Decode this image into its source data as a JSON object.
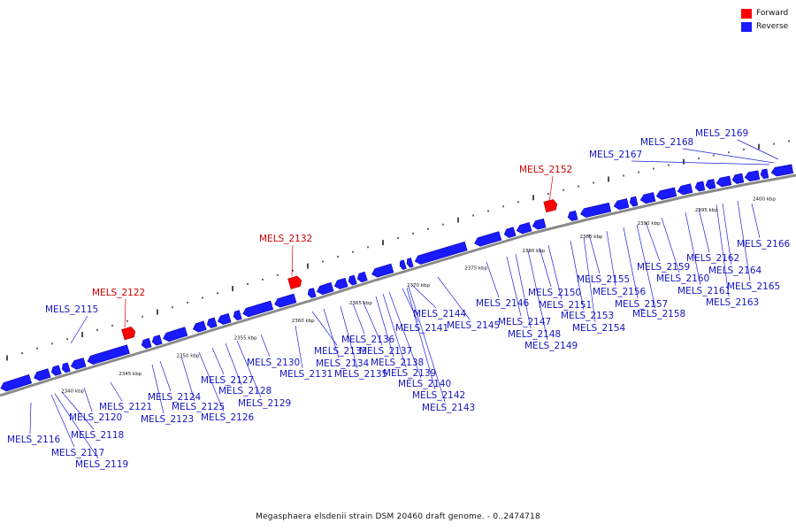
{
  "legend": {
    "forward_label": "Forward",
    "reverse_label": "Reverse",
    "forward_color": "#ff0000",
    "reverse_color": "#1a1aff"
  },
  "caption": "Megasphaera elsdenii strain DSM 20460 draft genome. - 0..2474718",
  "colors": {
    "leader_forward": "#e00000",
    "leader_reverse": "#2020dd",
    "label_forward": "#d00000",
    "label_reverse": "#1515c0",
    "backbone": "#8a8a8a",
    "ticks": "#000000"
  },
  "scale": {
    "unit": "kbp",
    "start_kbp": 2336,
    "end_kbp": 2402,
    "labels": [
      {
        "kbp": 2340,
        "text": "2340 kbp"
      },
      {
        "kbp": 2345,
        "text": "2345 kbp"
      },
      {
        "kbp": 2350,
        "text": "2350 kbp"
      },
      {
        "kbp": 2355,
        "text": "2355 kbp"
      },
      {
        "kbp": 2360,
        "text": "2360 kbp"
      },
      {
        "kbp": 2365,
        "text": "2365 kbp"
      },
      {
        "kbp": 2370,
        "text": "2370 kbp"
      },
      {
        "kbp": 2375,
        "text": "2375 kbp"
      },
      {
        "kbp": 2380,
        "text": "2380 kbp"
      },
      {
        "kbp": 2385,
        "text": "2385 kbp"
      },
      {
        "kbp": 2390,
        "text": "2390 kbp"
      },
      {
        "kbp": 2395,
        "text": "2395 kbp"
      },
      {
        "kbp": 2400,
        "text": "2400 kbp"
      }
    ]
  },
  "genes": [
    {
      "name": "MELS_2115",
      "strand": "reverse"
    },
    {
      "name": "MELS_2116",
      "strand": "reverse"
    },
    {
      "name": "MELS_2117",
      "strand": "reverse"
    },
    {
      "name": "MELS_2118",
      "strand": "reverse"
    },
    {
      "name": "MELS_2119",
      "strand": "reverse"
    },
    {
      "name": "MELS_2120",
      "strand": "reverse"
    },
    {
      "name": "MELS_2121",
      "strand": "reverse"
    },
    {
      "name": "MELS_2122",
      "strand": "forward"
    },
    {
      "name": "MELS_2123",
      "strand": "reverse"
    },
    {
      "name": "MELS_2124",
      "strand": "reverse"
    },
    {
      "name": "MELS_2125",
      "strand": "reverse"
    },
    {
      "name": "MELS_2126",
      "strand": "reverse"
    },
    {
      "name": "MELS_2127",
      "strand": "reverse"
    },
    {
      "name": "MELS_2128",
      "strand": "reverse"
    },
    {
      "name": "MELS_2129",
      "strand": "reverse"
    },
    {
      "name": "MELS_2130",
      "strand": "reverse"
    },
    {
      "name": "MELS_2131",
      "strand": "reverse"
    },
    {
      "name": "MELS_2132",
      "strand": "forward"
    },
    {
      "name": "MELS_2133",
      "strand": "reverse"
    },
    {
      "name": "MELS_2134",
      "strand": "reverse"
    },
    {
      "name": "MELS_2135",
      "strand": "reverse"
    },
    {
      "name": "MELS_2136",
      "strand": "reverse"
    },
    {
      "name": "MELS_2137",
      "strand": "reverse"
    },
    {
      "name": "MELS_2138",
      "strand": "reverse"
    },
    {
      "name": "MELS_2139",
      "strand": "reverse"
    },
    {
      "name": "MELS_2140",
      "strand": "reverse"
    },
    {
      "name": "MELS_2141",
      "strand": "reverse"
    },
    {
      "name": "MELS_2142",
      "strand": "reverse"
    },
    {
      "name": "MELS_2143",
      "strand": "reverse"
    },
    {
      "name": "MELS_2144",
      "strand": "reverse"
    },
    {
      "name": "MELS_2145",
      "strand": "reverse"
    },
    {
      "name": "MELS_2146",
      "strand": "reverse"
    },
    {
      "name": "MELS_2147",
      "strand": "reverse"
    },
    {
      "name": "MELS_2148",
      "strand": "reverse"
    },
    {
      "name": "MELS_2149",
      "strand": "reverse"
    },
    {
      "name": "MELS_2150",
      "strand": "reverse"
    },
    {
      "name": "MELS_2151",
      "strand": "reverse"
    },
    {
      "name": "MELS_2152",
      "strand": "forward"
    },
    {
      "name": "MELS_2153",
      "strand": "reverse"
    },
    {
      "name": "MELS_2154",
      "strand": "reverse"
    },
    {
      "name": "MELS_2155",
      "strand": "reverse"
    },
    {
      "name": "MELS_2156",
      "strand": "reverse"
    },
    {
      "name": "MELS_2157",
      "strand": "reverse"
    },
    {
      "name": "MELS_2158",
      "strand": "reverse"
    },
    {
      "name": "MELS_2159",
      "strand": "reverse"
    },
    {
      "name": "MELS_2160",
      "strand": "reverse"
    },
    {
      "name": "MELS_2161",
      "strand": "reverse"
    },
    {
      "name": "MELS_2162",
      "strand": "reverse"
    },
    {
      "name": "MELS_2163",
      "strand": "reverse"
    },
    {
      "name": "MELS_2164",
      "strand": "reverse"
    },
    {
      "name": "MELS_2165",
      "strand": "reverse"
    },
    {
      "name": "MELS_2166",
      "strand": "reverse"
    },
    {
      "name": "MELS_2167",
      "strand": "reverse"
    },
    {
      "name": "MELS_2168",
      "strand": "reverse"
    },
    {
      "name": "MELS_2169",
      "strand": "reverse"
    }
  ]
}
